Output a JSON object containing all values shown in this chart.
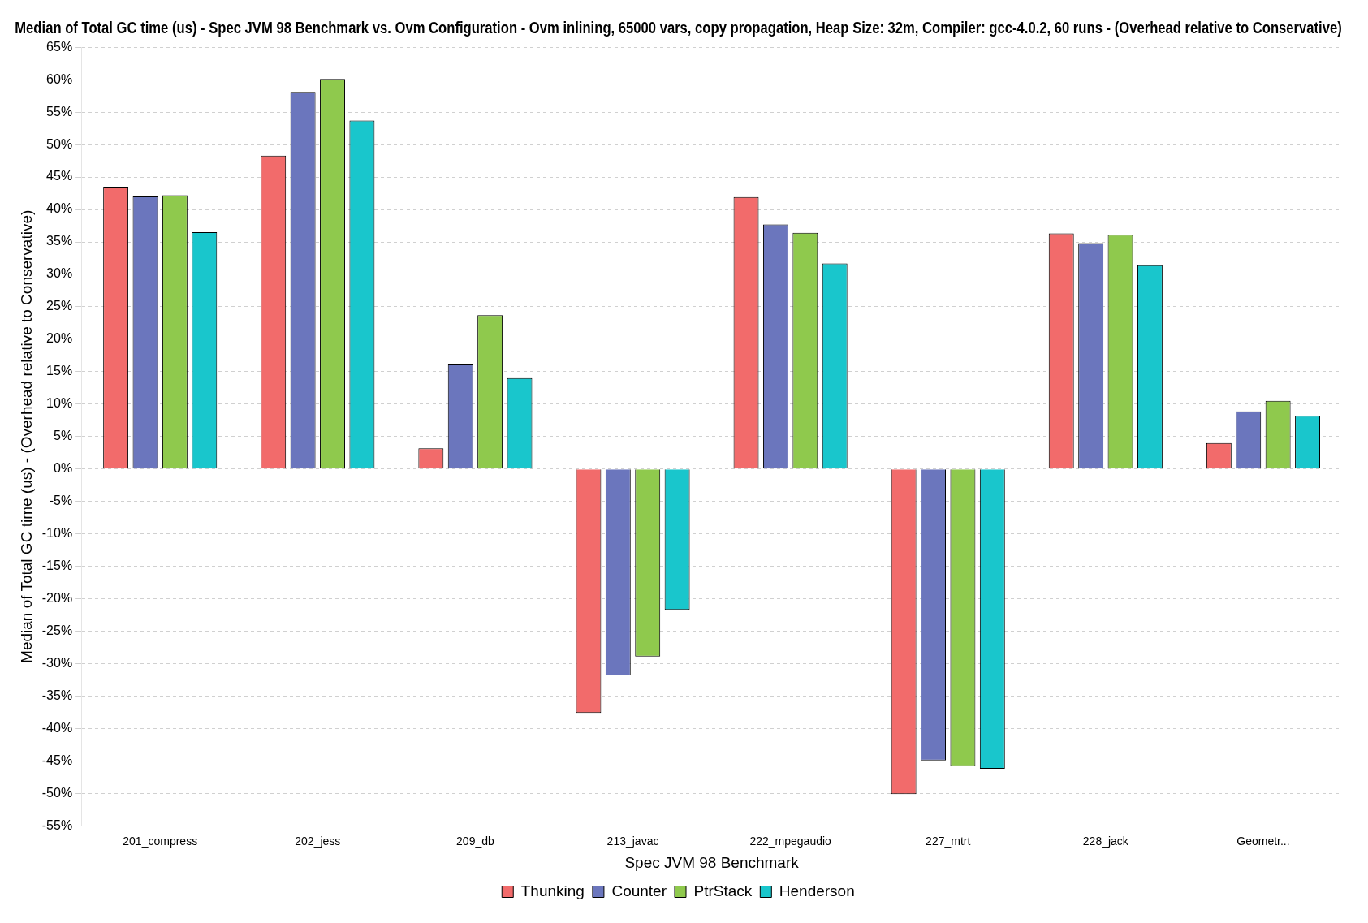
{
  "chart_data": {
    "type": "bar",
    "title": "Median of Total GC time (us) - Spec JVM 98 Benchmark vs. Ovm Configuration - Ovm inlining, 65000 vars, copy propagation, Heap Size: 32m, Compiler: gcc-4.0.2, 60 runs - (Overhead relative to Conservative)",
    "xlabel": "Spec JVM 98 Benchmark",
    "ylabel": "Median of Total GC time (us) - (Overhead relative to Conservative)",
    "categories": [
      "201_compress",
      "202_jess",
      "209_db",
      "213_javac",
      "222_mpegaudio",
      "227_mtrt",
      "228_jack",
      "Geometr..."
    ],
    "series": [
      {
        "name": "Thunking",
        "color": "#f26b6b",
        "values": [
          43.5,
          48.3,
          3.2,
          -37.6,
          41.9,
          -50.1,
          36.3,
          4.0
        ]
      },
      {
        "name": "Counter",
        "color": "#6b76bd",
        "values": [
          42.0,
          58.1,
          16.1,
          -31.8,
          37.7,
          -44.9,
          34.8,
          8.9
        ]
      },
      {
        "name": "PtrStack",
        "color": "#8fc94d",
        "values": [
          42.2,
          60.1,
          23.7,
          -28.9,
          36.4,
          -45.8,
          36.1,
          10.5
        ]
      },
      {
        "name": "Henderson",
        "color": "#19c6cc",
        "values": [
          36.5,
          53.7,
          14.0,
          -21.7,
          31.7,
          -46.2,
          31.4,
          8.2
        ]
      }
    ],
    "ylim": [
      -55,
      65
    ],
    "yticks": [
      {
        "value": -55,
        "label": "-55%"
      },
      {
        "value": -50,
        "label": "-50%"
      },
      {
        "value": -45,
        "label": "-45%"
      },
      {
        "value": -40,
        "label": "-40%"
      },
      {
        "value": -35,
        "label": "-35%"
      },
      {
        "value": -30,
        "label": "-30%"
      },
      {
        "value": -25,
        "label": "-25%"
      },
      {
        "value": -20,
        "label": "-20%"
      },
      {
        "value": -15,
        "label": "-15%"
      },
      {
        "value": -10,
        "label": "-10%"
      },
      {
        "value": -5,
        "label": "-5%"
      },
      {
        "value": 0,
        "label": "0%"
      },
      {
        "value": 5,
        "label": "5%"
      },
      {
        "value": 10,
        "label": "10%"
      },
      {
        "value": 15,
        "label": "15%"
      },
      {
        "value": 20,
        "label": "20%"
      },
      {
        "value": 25,
        "label": "25%"
      },
      {
        "value": 30,
        "label": "30%"
      },
      {
        "value": 35,
        "label": "35%"
      },
      {
        "value": 40,
        "label": "40%"
      },
      {
        "value": 45,
        "label": "45%"
      },
      {
        "value": 50,
        "label": "50%"
      },
      {
        "value": 55,
        "label": "55%"
      },
      {
        "value": 60,
        "label": "60%"
      },
      {
        "value": 65,
        "label": "65%"
      }
    ],
    "grid": "y",
    "legend": "bottom"
  }
}
